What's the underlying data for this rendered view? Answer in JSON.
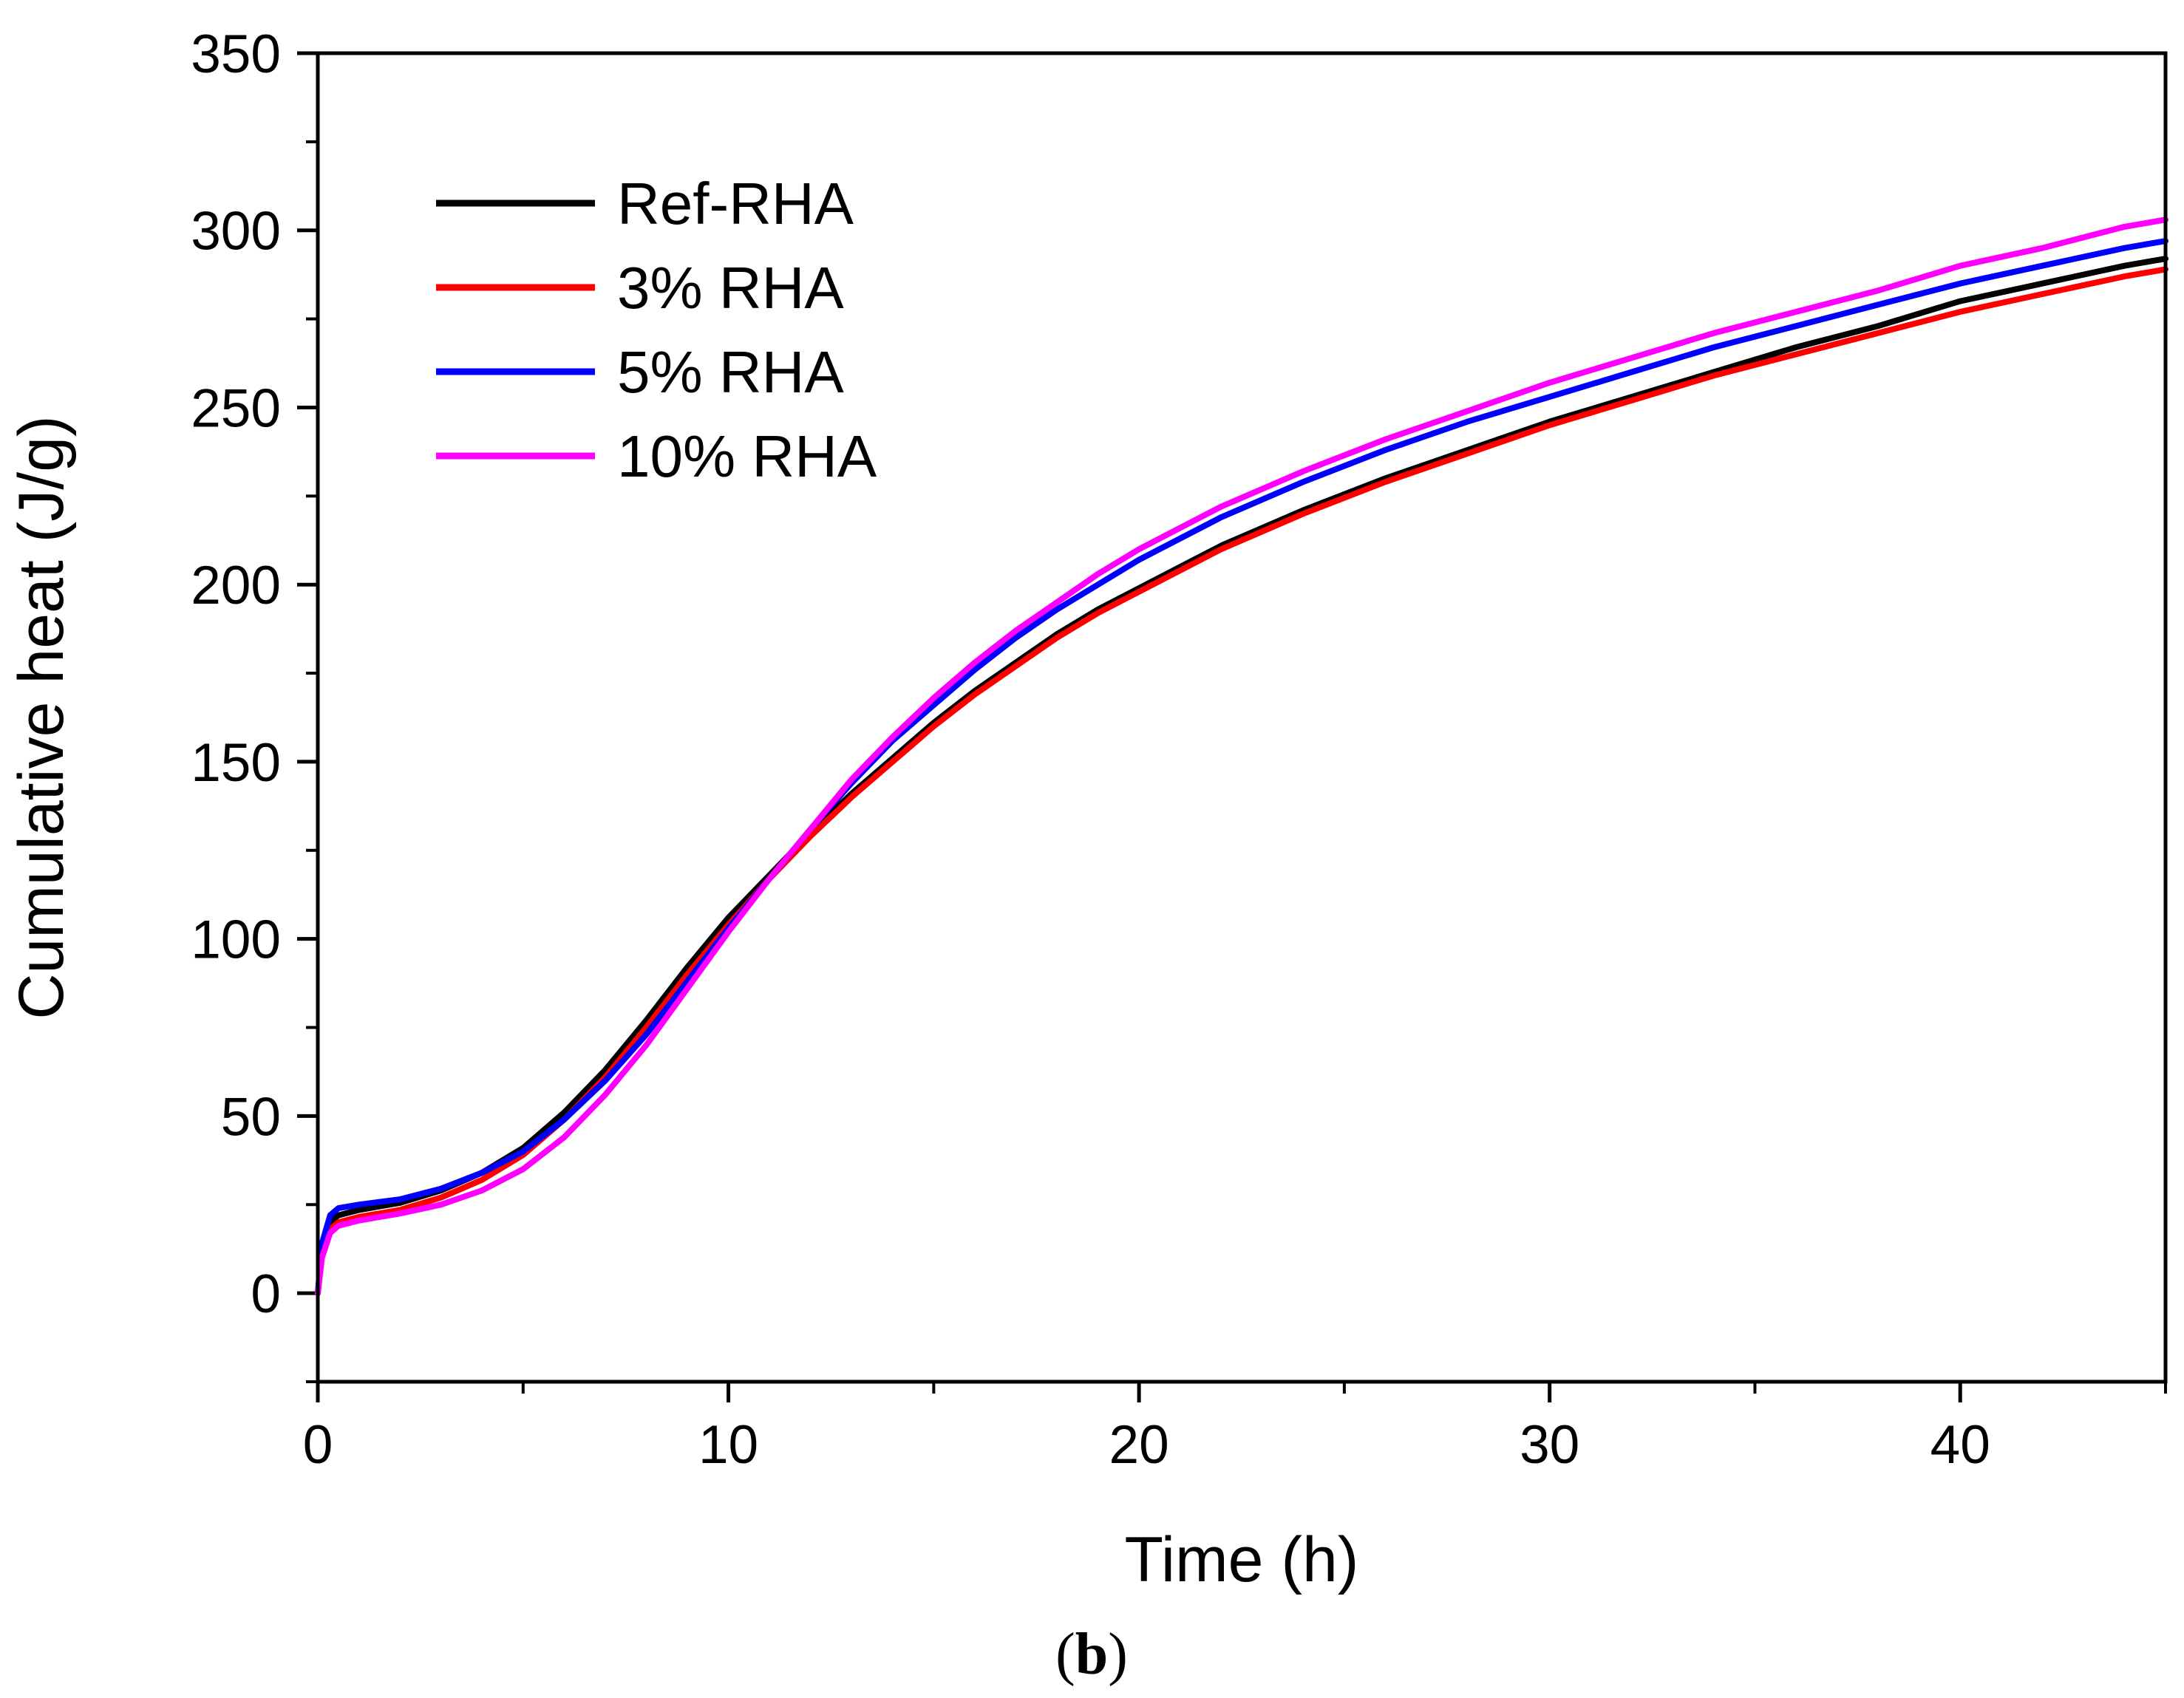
{
  "chart_data": {
    "type": "line",
    "title": "",
    "xlabel": "Time (h)",
    "ylabel": "Cumulative heat (J/g)",
    "panel_label": {
      "open": "(",
      "letter": "b",
      "close": ")"
    },
    "xlim": [
      0,
      45
    ],
    "ylim": [
      -25,
      350
    ],
    "x_ticks": [
      "0",
      "10",
      "20",
      "30",
      "40"
    ],
    "y_ticks": [
      "0",
      "50",
      "100",
      "150",
      "200",
      "250",
      "300",
      "350"
    ],
    "legend_position": "top-left",
    "series": [
      {
        "name": "Ref-RHA",
        "color": "#000000",
        "points": [
          [
            0,
            0
          ],
          [
            0.1,
            12
          ],
          [
            0.3,
            20
          ],
          [
            0.5,
            22
          ],
          [
            1,
            23.5
          ],
          [
            2,
            25.5
          ],
          [
            3,
            29
          ],
          [
            4,
            34
          ],
          [
            5,
            41
          ],
          [
            6,
            51
          ],
          [
            7,
            63
          ],
          [
            8,
            77
          ],
          [
            9,
            92
          ],
          [
            10,
            106
          ],
          [
            11,
            118
          ],
          [
            12,
            130
          ],
          [
            13,
            141
          ],
          [
            14,
            151
          ],
          [
            15,
            161
          ],
          [
            16,
            170
          ],
          [
            17,
            178
          ],
          [
            18,
            186
          ],
          [
            19,
            193
          ],
          [
            20,
            199
          ],
          [
            22,
            211
          ],
          [
            24,
            221
          ],
          [
            26,
            230
          ],
          [
            28,
            238
          ],
          [
            30,
            246
          ],
          [
            32,
            253
          ],
          [
            34,
            260
          ],
          [
            36,
            267
          ],
          [
            38,
            273
          ],
          [
            40,
            280
          ],
          [
            42,
            285
          ],
          [
            44,
            290
          ],
          [
            45,
            292
          ]
        ]
      },
      {
        "name": "3% RHA",
        "color": "#ff0000",
        "points": [
          [
            0,
            0
          ],
          [
            0.1,
            11
          ],
          [
            0.3,
            18
          ],
          [
            0.5,
            20
          ],
          [
            1,
            21.5
          ],
          [
            2,
            23.5
          ],
          [
            3,
            27
          ],
          [
            4,
            32
          ],
          [
            5,
            39
          ],
          [
            6,
            49
          ],
          [
            7,
            61
          ],
          [
            8,
            75
          ],
          [
            9,
            90
          ],
          [
            10,
            104
          ],
          [
            11,
            117
          ],
          [
            12,
            129
          ],
          [
            13,
            140
          ],
          [
            14,
            150
          ],
          [
            15,
            160
          ],
          [
            16,
            169
          ],
          [
            17,
            177
          ],
          [
            18,
            185
          ],
          [
            19,
            192
          ],
          [
            20,
            198
          ],
          [
            22,
            210
          ],
          [
            24,
            220
          ],
          [
            26,
            229
          ],
          [
            28,
            237
          ],
          [
            30,
            245
          ],
          [
            32,
            252
          ],
          [
            34,
            259
          ],
          [
            36,
            265
          ],
          [
            38,
            271
          ],
          [
            40,
            277
          ],
          [
            42,
            282
          ],
          [
            44,
            287
          ],
          [
            45,
            289
          ]
        ]
      },
      {
        "name": "5% RHA",
        "color": "#0000ff",
        "points": [
          [
            0,
            0
          ],
          [
            0.1,
            14
          ],
          [
            0.3,
            22
          ],
          [
            0.5,
            24
          ],
          [
            1,
            25
          ],
          [
            2,
            26.5
          ],
          [
            3,
            29.5
          ],
          [
            4,
            34
          ],
          [
            5,
            40
          ],
          [
            6,
            49
          ],
          [
            7,
            60
          ],
          [
            8,
            73
          ],
          [
            9,
            88
          ],
          [
            10,
            103
          ],
          [
            11,
            117
          ],
          [
            12,
            131
          ],
          [
            13,
            144
          ],
          [
            14,
            156
          ],
          [
            15,
            166
          ],
          [
            16,
            176
          ],
          [
            17,
            185
          ],
          [
            18,
            193
          ],
          [
            19,
            200
          ],
          [
            20,
            207
          ],
          [
            22,
            219
          ],
          [
            24,
            229
          ],
          [
            26,
            238
          ],
          [
            28,
            246
          ],
          [
            30,
            253
          ],
          [
            32,
            260
          ],
          [
            34,
            267
          ],
          [
            36,
            273
          ],
          [
            38,
            279
          ],
          [
            40,
            285
          ],
          [
            42,
            290
          ],
          [
            44,
            295
          ],
          [
            45,
            297
          ]
        ]
      },
      {
        "name": "10% RHA",
        "color": "#ff00ff",
        "points": [
          [
            0,
            0
          ],
          [
            0.1,
            10
          ],
          [
            0.3,
            17
          ],
          [
            0.5,
            19
          ],
          [
            1,
            20.5
          ],
          [
            2,
            22.5
          ],
          [
            3,
            25
          ],
          [
            4,
            29
          ],
          [
            5,
            35
          ],
          [
            6,
            44
          ],
          [
            7,
            56
          ],
          [
            8,
            70
          ],
          [
            9,
            86
          ],
          [
            10,
            102
          ],
          [
            11,
            117
          ],
          [
            12,
            131
          ],
          [
            13,
            145
          ],
          [
            14,
            157
          ],
          [
            15,
            168
          ],
          [
            16,
            178
          ],
          [
            17,
            187
          ],
          [
            18,
            195
          ],
          [
            19,
            203
          ],
          [
            20,
            210
          ],
          [
            22,
            222
          ],
          [
            24,
            232
          ],
          [
            26,
            241
          ],
          [
            28,
            249
          ],
          [
            30,
            257
          ],
          [
            32,
            264
          ],
          [
            34,
            271
          ],
          [
            36,
            277
          ],
          [
            38,
            283
          ],
          [
            40,
            290
          ],
          [
            42,
            295
          ],
          [
            44,
            301
          ],
          [
            45,
            303
          ]
        ]
      }
    ]
  }
}
